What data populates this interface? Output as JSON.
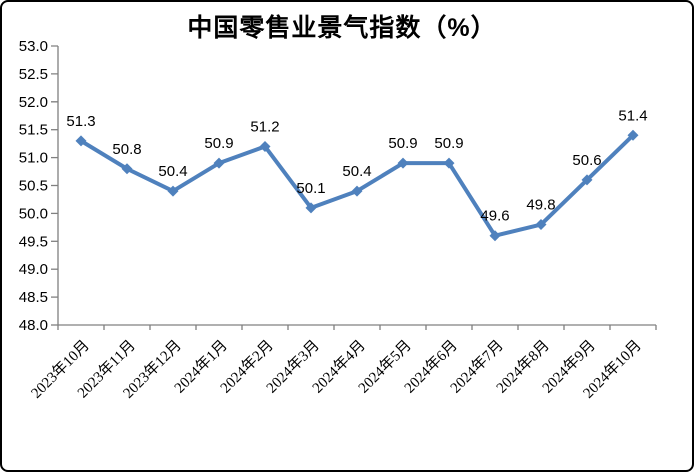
{
  "window": {
    "background_color": "#ffffff",
    "border_color": "#000000"
  },
  "chart_data": {
    "type": "line",
    "title": "中国零售业景气指数（%）",
    "xlabel": "",
    "ylabel": "",
    "categories": [
      "2023年10月",
      "2023年11月",
      "2023年12月",
      "2024年1月",
      "2024年2月",
      "2024年3月",
      "2024年4月",
      "2024年5月",
      "2024年6月",
      "2024年7月",
      "2024年8月",
      "2024年9月",
      "2024年10月"
    ],
    "values": [
      51.3,
      50.8,
      50.4,
      50.9,
      51.2,
      50.1,
      50.4,
      50.9,
      50.9,
      49.6,
      49.8,
      50.6,
      51.4
    ],
    "data_labels": [
      "51.3",
      "50.8",
      "50.4",
      "50.9",
      "51.2",
      "50.1",
      "50.4",
      "50.9",
      "50.9",
      "49.6",
      "49.8",
      "50.6",
      "51.4"
    ],
    "ylim": [
      48.0,
      53.0
    ],
    "ytick_step": 0.5,
    "ytick_labels": [
      "48.0",
      "48.5",
      "49.0",
      "49.5",
      "50.0",
      "50.5",
      "51.0",
      "51.5",
      "52.0",
      "52.5",
      "53.0"
    ],
    "grid": false,
    "legend_position": "none",
    "marker_shape": "diamond",
    "line_color": "#4F81BD",
    "marker_color": "#4F81BD",
    "axis_color": "#808080",
    "text_color": "#000000"
  }
}
